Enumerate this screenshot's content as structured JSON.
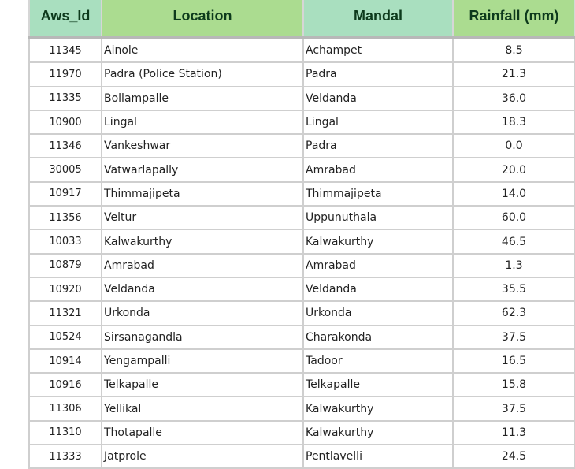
{
  "table": {
    "headers": [
      "Aws_Id",
      "Location",
      "Mandal",
      "Rainfall (mm)"
    ],
    "header_colors": {
      "teal": "#a9dfbf",
      "green": "#abdc90",
      "text": "#0d3a1c"
    },
    "rows": [
      [
        "11345",
        "Ainole",
        "Achampet",
        "8.5"
      ],
      [
        "11970",
        "Padra (Police Station)",
        "Padra",
        "21.3"
      ],
      [
        "11335",
        "Bollampalle",
        "Veldanda",
        "36.0"
      ],
      [
        "10900",
        "Lingal",
        "Lingal",
        "18.3"
      ],
      [
        "11346",
        "Vankeshwar",
        "Padra",
        "0.0"
      ],
      [
        "30005",
        "Vatwarlapally",
        "Amrabad",
        "20.0"
      ],
      [
        "10917",
        "Thimmajipeta",
        "Thimmajipeta",
        "14.0"
      ],
      [
        "11356",
        "Veltur",
        "Uppunuthala",
        "60.0"
      ],
      [
        "10033",
        "Kalwakurthy",
        "Kalwakurthy",
        "46.5"
      ],
      [
        "10879",
        "Amrabad",
        "Amrabad",
        "1.3"
      ],
      [
        "10920",
        "Veldanda",
        "Veldanda",
        "35.5"
      ],
      [
        "11321",
        "Urkonda",
        "Urkonda",
        "62.3"
      ],
      [
        "10524",
        "Sirsanagandla",
        "Charakonda",
        "37.5"
      ],
      [
        "10914",
        "Yengampalli",
        "Tadoor",
        "16.5"
      ],
      [
        "10916",
        "Telkapalle",
        "Telkapalle",
        "15.8"
      ],
      [
        "11306",
        "Yellikal",
        "Kalwakurthy",
        "37.5"
      ],
      [
        "11310",
        "Thotapalle",
        "Kalwakurthy",
        "11.3"
      ],
      [
        "11333",
        "Jatprole",
        "Pentlavelli",
        "24.5"
      ]
    ]
  }
}
